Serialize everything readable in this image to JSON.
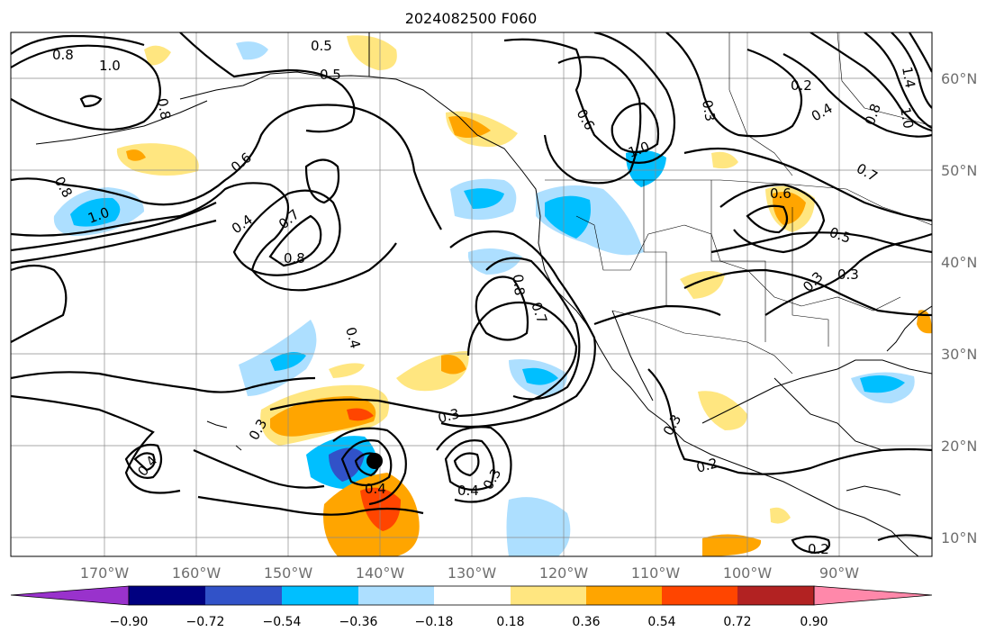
{
  "title": "2024082500 F060",
  "map": {
    "lat_labels": [
      "60°N",
      "50°N",
      "40°N",
      "30°N",
      "20°N",
      "10°N"
    ],
    "lon_labels": [
      "170°W",
      "160°W",
      "150°W",
      "140°W",
      "130°W",
      "120°W",
      "110°W",
      "100°W",
      "90°W"
    ],
    "contour_labels": [
      "0.8",
      "1.0",
      "0.8",
      "0.5",
      "0.5",
      "0.6",
      "0.4",
      "0.7",
      "0.8",
      "1.0",
      "0.8",
      "0.4",
      "0.3",
      "0.4",
      "0.3",
      "0.4",
      "0.4",
      "0.3",
      "0.8",
      "0.7",
      "0.6",
      "0.3",
      "1.0",
      "0.3",
      "0.2",
      "0.6",
      "0.5",
      "0.3",
      "0.3",
      "0.2",
      "0.2",
      "0.4",
      "0.7",
      "0.8",
      "1.0",
      "1.4"
    ],
    "cyclone": "tropical-cyclone-marker"
  },
  "colorbar": {
    "ticks": [
      "−0.90",
      "−0.72",
      "−0.54",
      "−0.36",
      "−0.18",
      "0.18",
      "0.36",
      "0.54",
      "0.72",
      "0.90"
    ],
    "colors": [
      "#9932cc",
      "#000080",
      "#3152c8",
      "#00bfff",
      "#addfff",
      "#ffffff",
      "#ffe680",
      "#ffa500",
      "#ff4500",
      "#b22222",
      "#ff88aa"
    ]
  }
}
